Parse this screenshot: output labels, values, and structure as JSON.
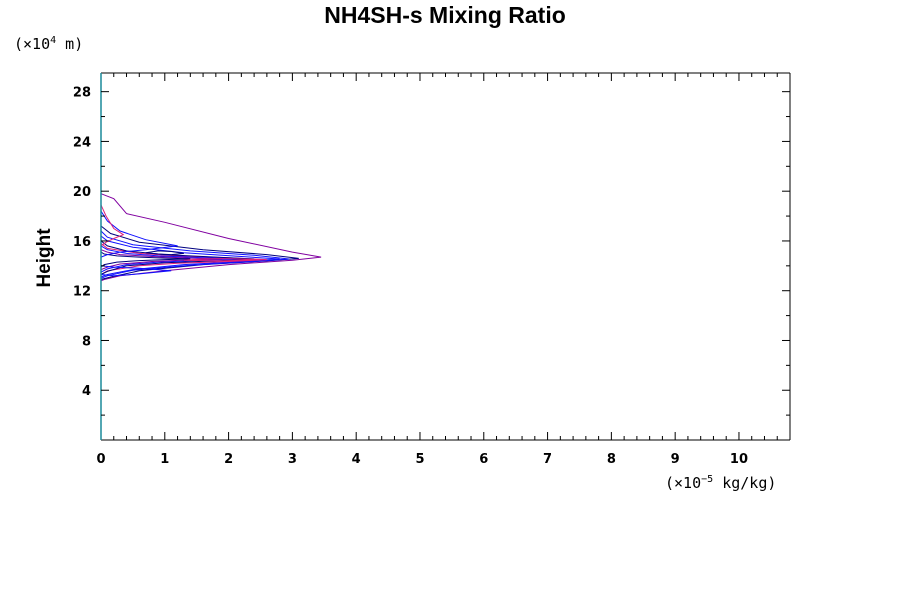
{
  "chart_data": {
    "type": "line",
    "title": "NH4SH-s Mixing Ratio",
    "ylabel": "Height",
    "y_unit": {
      "prefix": "(×10",
      "exp": "4",
      "suffix": " m)"
    },
    "x_unit": {
      "prefix": "(×10",
      "exp": "−5",
      "suffix": " kg/kg)"
    },
    "xlim": [
      0,
      10.8
    ],
    "ylim": [
      0,
      29.5
    ],
    "x_ticks": [
      "0",
      "1",
      "2",
      "3",
      "4",
      "5",
      "6",
      "7",
      "8",
      "9",
      "10"
    ],
    "y_ticks": [
      "4",
      "8",
      "12",
      "16",
      "20",
      "24",
      "28"
    ],
    "grid": false,
    "colors": {
      "axis": "#000000",
      "left_axis": "#1a8a9a",
      "purple": "#8000a0",
      "blue": "#1010ff",
      "navy": "#000080",
      "magenta": "#e0207a"
    },
    "series": [
      {
        "color": "#8000a0",
        "x": [
          0,
          0.2,
          0.4,
          1.0,
          2.0,
          3.0,
          3.45,
          3.0,
          2.0,
          1.0,
          0.3,
          0.05,
          0
        ],
        "y": [
          19.8,
          19.4,
          18.2,
          17.5,
          16.2,
          15.1,
          14.7,
          14.45,
          14.1,
          13.6,
          13.2,
          12.9,
          12.8
        ]
      },
      {
        "color": "#000080",
        "x": [
          0,
          0.15,
          0.6,
          1.6,
          2.6,
          3.1,
          2.6,
          1.6,
          0.6,
          0.15,
          0
        ],
        "y": [
          17.2,
          16.6,
          15.9,
          15.3,
          14.9,
          14.6,
          14.4,
          14.1,
          13.6,
          13.1,
          12.9
        ]
      },
      {
        "color": "#1010ff",
        "x": [
          0,
          0.1,
          0.5,
          1.4,
          2.4,
          2.95,
          2.4,
          1.4,
          0.5,
          0.1,
          0
        ],
        "y": [
          16.8,
          16.3,
          15.7,
          15.2,
          14.85,
          14.55,
          14.35,
          14.05,
          13.65,
          13.2,
          13.0
        ]
      },
      {
        "color": "#1010ff",
        "x": [
          0,
          0.1,
          0.5,
          1.3,
          2.2,
          2.8,
          2.2,
          1.3,
          0.5,
          0.1,
          0
        ],
        "y": [
          16.4,
          16.0,
          15.5,
          15.05,
          14.75,
          14.55,
          14.35,
          14.1,
          13.7,
          13.3,
          13.1
        ]
      },
      {
        "color": "#e0207a",
        "x": [
          0,
          0.1,
          0.6,
          1.2,
          2.0,
          2.6,
          2.0,
          1.2,
          0.6,
          0.1,
          0
        ],
        "y": [
          15.8,
          15.4,
          15.0,
          14.8,
          14.65,
          14.5,
          14.35,
          14.2,
          14.0,
          13.6,
          13.3
        ]
      },
      {
        "color": "#000080",
        "x": [
          0,
          0.1,
          0.4,
          1.0,
          1.8,
          2.4,
          1.8,
          1.0,
          0.4,
          0.1,
          0
        ],
        "y": [
          16.0,
          15.6,
          15.2,
          14.9,
          14.7,
          14.55,
          14.4,
          14.25,
          14.0,
          13.55,
          13.3
        ]
      },
      {
        "color": "#1010ff",
        "x": [
          0,
          0.1,
          0.4,
          0.9,
          1.6,
          2.2,
          1.6,
          0.9,
          0.4,
          0.1,
          0
        ],
        "y": [
          15.6,
          15.3,
          15.0,
          14.8,
          14.65,
          14.55,
          14.45,
          14.3,
          14.1,
          13.75,
          13.5
        ]
      },
      {
        "color": "#8000a0",
        "x": [
          0,
          0.1,
          0.3,
          0.8,
          1.4,
          1.9,
          1.4,
          0.8,
          0.3,
          0.1,
          0
        ],
        "y": [
          15.3,
          15.1,
          14.9,
          14.75,
          14.62,
          14.55,
          14.48,
          14.35,
          14.15,
          13.9,
          13.7
        ]
      },
      {
        "color": "#000080",
        "x": [
          0,
          0.05,
          0.25,
          0.6,
          1.0,
          1.4,
          1.0,
          0.6,
          0.25,
          0.05,
          0
        ],
        "y": [
          15.1,
          14.95,
          14.8,
          14.7,
          14.62,
          14.56,
          14.5,
          14.42,
          14.3,
          14.1,
          13.9
        ]
      },
      {
        "color": "#1010ff",
        "x": [
          0,
          0.1,
          0.3,
          0.7,
          1.2,
          0.7,
          0.3,
          0.1,
          0
        ],
        "y": [
          18.4,
          17.6,
          16.8,
          16.1,
          15.6,
          15.3,
          15.1,
          14.9,
          14.7
        ]
      },
      {
        "color": "#e0207a",
        "x": [
          0,
          0.08,
          0.2,
          0.35,
          0.2,
          0.08,
          0
        ],
        "y": [
          18.9,
          18.0,
          17.0,
          16.5,
          16.2,
          15.9,
          15.6
        ]
      },
      {
        "color": "#1010ff",
        "x": [
          0,
          0.2,
          0.6,
          1.1,
          0.6,
          0.2,
          0
        ],
        "y": [
          13.3,
          13.2,
          13.35,
          13.6,
          13.8,
          13.9,
          14.0
        ]
      },
      {
        "color": "#e0207a",
        "x": [
          1.3,
          1.6,
          1.9,
          2.2,
          2.5,
          2.2,
          1.9,
          1.6,
          1.3
        ],
        "y": [
          14.45,
          14.42,
          14.4,
          14.45,
          14.5,
          14.55,
          14.58,
          14.55,
          14.45
        ]
      },
      {
        "color": "#000080",
        "x": [
          0.7,
          0.9,
          1.1,
          1.3,
          1.1,
          0.9,
          0.7
        ],
        "y": [
          15.05,
          14.95,
          14.9,
          15.0,
          15.15,
          15.2,
          15.05
        ]
      }
    ]
  }
}
